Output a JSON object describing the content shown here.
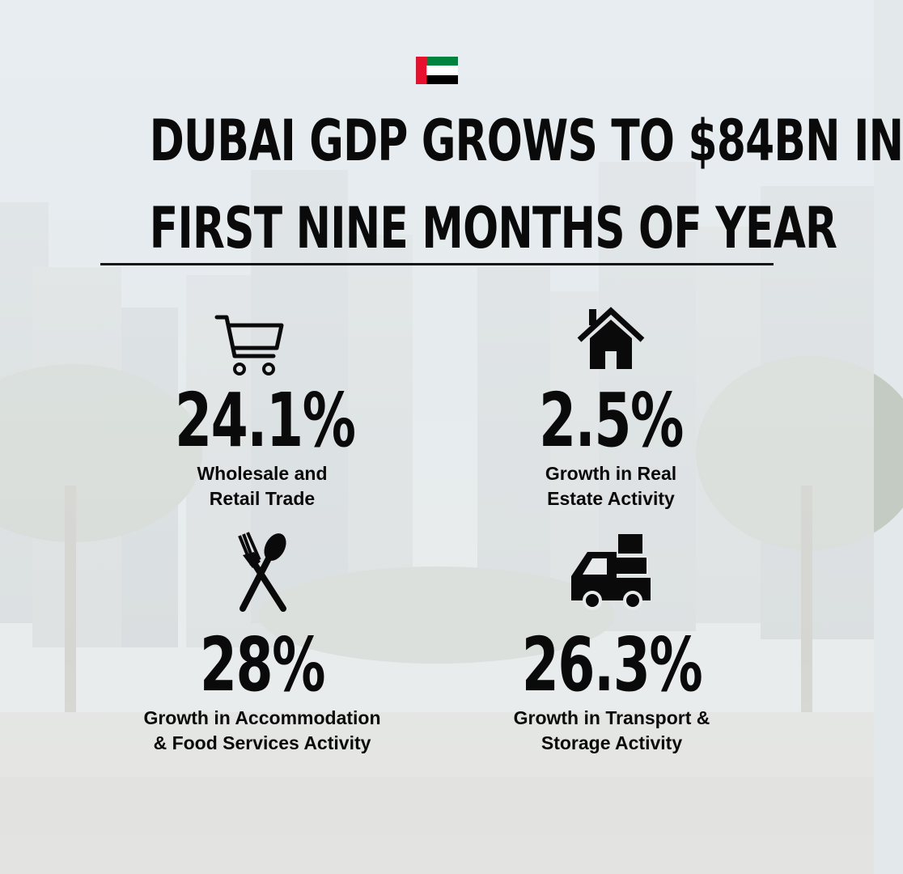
{
  "title": {
    "line1": "DUBAI GDP GROWS TO $84BN IN",
    "line2": "FIRST NINE MONTHS OF YEAR"
  },
  "flag_colors": {
    "red": "#e8112d",
    "green": "#00843d",
    "white": "#ffffff",
    "black": "#000000"
  },
  "stats": [
    {
      "icon": "shopping-cart-icon",
      "value": "24.1%",
      "label_line1": "Wholesale and",
      "label_line2": "Retail Trade"
    },
    {
      "icon": "house-icon",
      "value": "2.5%",
      "label_line1": "Growth in Real",
      "label_line2": "Estate Activity"
    },
    {
      "icon": "fork-spoon-icon",
      "value": "28%",
      "label_line1": "Growth in Accommodation",
      "label_line2": "& Food Services Activity"
    },
    {
      "icon": "delivery-truck-icon",
      "value": "26.3%",
      "label_line1": "Growth in Transport &",
      "label_line2": "Storage Activity"
    }
  ]
}
